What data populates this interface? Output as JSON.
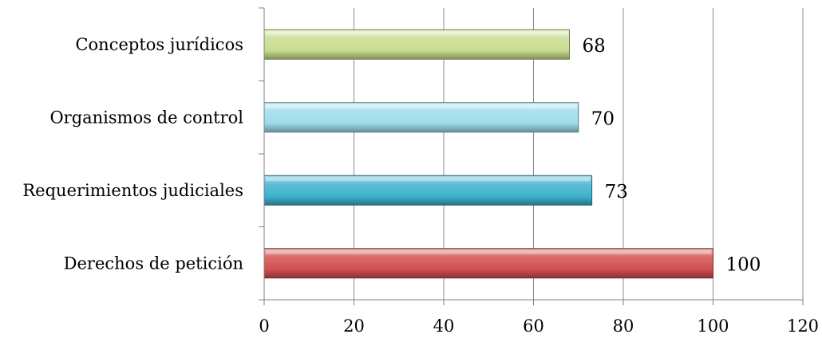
{
  "chart_data": {
    "type": "bar",
    "orientation": "horizontal",
    "categories": [
      "Conceptos jurídicos",
      "Organismos de control",
      "Requerimientos judiciales",
      "Derechos de petición"
    ],
    "values": [
      68,
      70,
      73,
      100
    ],
    "colors": [
      "#c9dd8f",
      "#9fdcec",
      "#3fb2cf",
      "#d2504f"
    ],
    "xlim": [
      0,
      120
    ],
    "xticks": [
      0,
      20,
      40,
      60,
      80,
      100,
      120
    ],
    "xtick_labels": [
      "0",
      "20",
      "40",
      "60",
      "80",
      "100",
      "120"
    ],
    "data_labels": [
      "68",
      "70",
      "73",
      "100"
    ],
    "grid": "vertical",
    "legend": "none"
  }
}
